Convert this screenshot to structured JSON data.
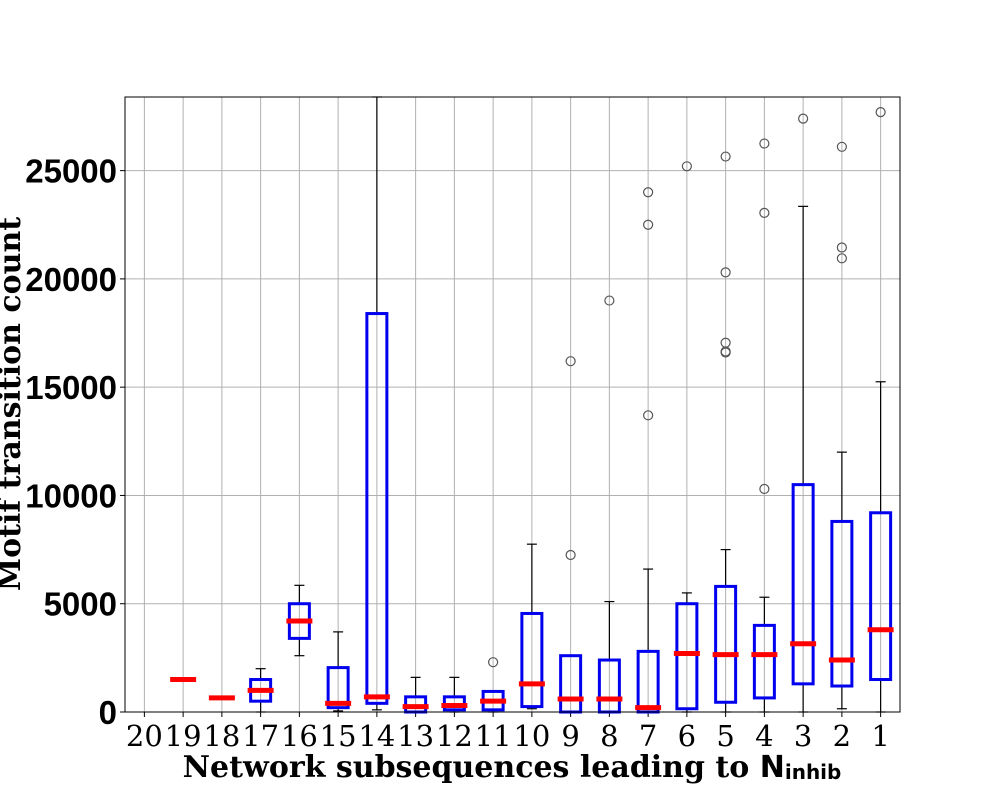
{
  "chart_data": {
    "type": "box",
    "title": "",
    "xlabel": "Network subsequences leading to ",
    "xlabel_symbol": "N",
    "xlabel_subscript": "inhib",
    "ylabel": "Motif transition count",
    "ylim": [
      0,
      28400
    ],
    "yticks": [
      0,
      5000,
      10000,
      15000,
      20000,
      25000
    ],
    "grid": true,
    "colors": {
      "box": "#0000ee",
      "median": "#ff0000",
      "whisker": "#000000",
      "outlier": "#555555",
      "grid": "#b0b0b0"
    },
    "categories": [
      "20",
      "19",
      "18",
      "17",
      "16",
      "15",
      "14",
      "13",
      "12",
      "11",
      "10",
      "9",
      "8",
      "7",
      "6",
      "5",
      "4",
      "3",
      "2",
      "1"
    ],
    "boxes": [
      {
        "label": "20",
        "empty": true
      },
      {
        "label": "19",
        "min": 1500,
        "q1": 1500,
        "median": 1500,
        "q3": 1500,
        "max": 1500,
        "outliers": []
      },
      {
        "label": "18",
        "min": 650,
        "q1": 650,
        "median": 650,
        "q3": 650,
        "max": 650,
        "outliers": []
      },
      {
        "label": "17",
        "min": 0,
        "q1": 500,
        "median": 1000,
        "q3": 1500,
        "max": 2000,
        "outliers": []
      },
      {
        "label": "16",
        "min": 2600,
        "q1": 3400,
        "median": 4200,
        "q3": 5000,
        "max": 5850,
        "outliers": []
      },
      {
        "label": "15",
        "min": 50,
        "q1": 200,
        "median": 400,
        "q3": 2050,
        "max": 3700,
        "outliers": []
      },
      {
        "label": "14",
        "min": 100,
        "q1": 400,
        "median": 700,
        "q3": 18400,
        "max": 28400,
        "outliers": []
      },
      {
        "label": "13",
        "min": 0,
        "q1": 0,
        "median": 250,
        "q3": 700,
        "max": 1600,
        "outliers": []
      },
      {
        "label": "12",
        "min": 0,
        "q1": 100,
        "median": 300,
        "q3": 700,
        "max": 1600,
        "outliers": []
      },
      {
        "label": "11",
        "min": 0,
        "q1": 100,
        "median": 500,
        "q3": 950,
        "max": 950,
        "outliers": [
          2300
        ]
      },
      {
        "label": "10",
        "min": 150,
        "q1": 250,
        "median": 1300,
        "q3": 4550,
        "max": 7750,
        "outliers": []
      },
      {
        "label": "9",
        "min": 0,
        "q1": 0,
        "median": 600,
        "q3": 2600,
        "max": 2600,
        "outliers": [
          7250,
          16200
        ]
      },
      {
        "label": "8",
        "min": 0,
        "q1": 0,
        "median": 600,
        "q3": 2400,
        "max": 5100,
        "outliers": [
          19000
        ]
      },
      {
        "label": "7",
        "min": 0,
        "q1": 0,
        "median": 200,
        "q3": 2800,
        "max": 6600,
        "outliers": [
          13700,
          22500,
          24000
        ]
      },
      {
        "label": "6",
        "min": 0,
        "q1": 150,
        "median": 2700,
        "q3": 5000,
        "max": 5500,
        "outliers": [
          25200
        ]
      },
      {
        "label": "5",
        "min": 0,
        "q1": 450,
        "median": 2650,
        "q3": 5800,
        "max": 7500,
        "outliers": [
          16600,
          16650,
          17050,
          20300,
          25650
        ]
      },
      {
        "label": "4",
        "min": 0,
        "q1": 650,
        "median": 2650,
        "q3": 4000,
        "max": 5300,
        "outliers": [
          10300,
          23050,
          26250
        ]
      },
      {
        "label": "3",
        "min": 0,
        "q1": 1300,
        "median": 3150,
        "q3": 10500,
        "max": 23350,
        "outliers": [
          27400
        ]
      },
      {
        "label": "2",
        "min": 150,
        "q1": 1200,
        "median": 2400,
        "q3": 8800,
        "max": 12000,
        "outliers": [
          20950,
          21450,
          26100
        ]
      },
      {
        "label": "1",
        "min": 0,
        "q1": 1500,
        "median": 3800,
        "q3": 9200,
        "max": 15250,
        "outliers": [
          27700
        ]
      }
    ]
  }
}
